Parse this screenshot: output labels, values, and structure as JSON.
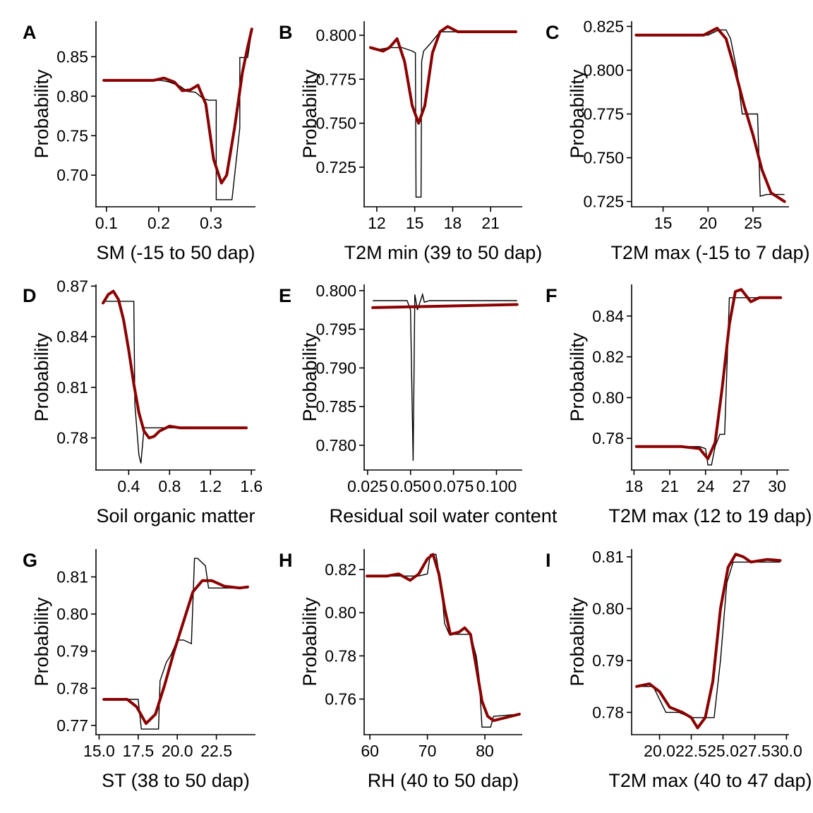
{
  "chart_data": [
    {
      "type": "line",
      "panel": "A",
      "xlabel": "SM  (-15 to 50 dap)",
      "ylabel": "Probability",
      "xlim": [
        0.08,
        0.385
      ],
      "ylim": [
        0.66,
        0.895
      ],
      "xticks": [
        0.1,
        0.2,
        0.3
      ],
      "xtick_labels": [
        "0.1",
        "0.2",
        "0.3"
      ],
      "yticks": [
        0.7,
        0.75,
        0.8,
        0.85
      ],
      "ytick_labels": [
        "0.70",
        "0.75",
        "0.80",
        "0.85"
      ],
      "series": [
        {
          "role": "partial_dependence",
          "color": "#000000",
          "x": [
            0.095,
            0.205,
            0.22,
            0.24,
            0.255,
            0.27,
            0.285,
            0.295,
            0.31,
            0.31,
            0.325,
            0.34,
            0.355,
            0.355,
            0.37,
            0.378
          ],
          "y": [
            0.82,
            0.82,
            0.818,
            0.813,
            0.806,
            0.805,
            0.797,
            0.795,
            0.795,
            0.669,
            0.669,
            0.669,
            0.76,
            0.849,
            0.849,
            0.883
          ]
        },
        {
          "role": "smoothed",
          "color": "#8b0000",
          "x": [
            0.095,
            0.15,
            0.19,
            0.21,
            0.23,
            0.245,
            0.26,
            0.275,
            0.29,
            0.305,
            0.32,
            0.33,
            0.345,
            0.36,
            0.37,
            0.378
          ],
          "y": [
            0.82,
            0.82,
            0.82,
            0.823,
            0.818,
            0.807,
            0.808,
            0.814,
            0.79,
            0.72,
            0.69,
            0.7,
            0.76,
            0.83,
            0.862,
            0.885
          ]
        }
      ]
    },
    {
      "type": "line",
      "panel": "B",
      "xlabel": "T2M min  (39 to 50 dap)",
      "ylabel": "Probability",
      "xlim": [
        11.0,
        23.5
      ],
      "ylim": [
        0.7025,
        0.808
      ],
      "xticks": [
        12,
        15,
        18,
        21
      ],
      "xtick_labels": [
        "12",
        "15",
        "18",
        "21"
      ],
      "yticks": [
        0.725,
        0.75,
        0.775,
        0.8
      ],
      "ytick_labels": [
        "0.725",
        "0.750",
        "0.775",
        "0.800"
      ],
      "series": [
        {
          "role": "partial_dependence",
          "color": "#000000",
          "x": [
            11.5,
            12.2,
            13.0,
            14.0,
            14.8,
            15.05,
            15.1,
            15.5,
            15.55,
            15.7,
            16.2,
            17.0,
            18.0,
            23.0
          ],
          "y": [
            0.793,
            0.792,
            0.793,
            0.793,
            0.791,
            0.79,
            0.708,
            0.708,
            0.785,
            0.791,
            0.795,
            0.802,
            0.802,
            0.802
          ]
        },
        {
          "role": "smoothed",
          "color": "#8b0000",
          "x": [
            11.5,
            12.5,
            13.0,
            13.6,
            14.2,
            14.8,
            15.3,
            15.8,
            16.4,
            17.0,
            17.6,
            18.4,
            19.5,
            23.0
          ],
          "y": [
            0.793,
            0.791,
            0.793,
            0.798,
            0.785,
            0.76,
            0.75,
            0.76,
            0.79,
            0.802,
            0.805,
            0.802,
            0.802,
            0.802
          ]
        }
      ]
    },
    {
      "type": "line",
      "panel": "C",
      "xlabel": "T2M max  (-15 to 7 dap)",
      "ylabel": "Probability",
      "xlim": [
        11.5,
        29.0
      ],
      "ylim": [
        0.722,
        0.828
      ],
      "xticks": [
        15,
        20,
        25
      ],
      "xtick_labels": [
        "15",
        "20",
        "25"
      ],
      "yticks": [
        0.725,
        0.75,
        0.775,
        0.8,
        0.825
      ],
      "ytick_labels": [
        "0.725",
        "0.750",
        "0.775",
        "0.800",
        "0.825"
      ],
      "series": [
        {
          "role": "partial_dependence",
          "color": "#000000",
          "x": [
            12.0,
            20.0,
            21.2,
            22.0,
            22.5,
            23.2,
            23.8,
            24.2,
            25.5,
            25.8,
            26.5,
            28.5
          ],
          "y": [
            0.82,
            0.82,
            0.823,
            0.823,
            0.818,
            0.8,
            0.775,
            0.775,
            0.775,
            0.728,
            0.729,
            0.729
          ]
        },
        {
          "role": "smoothed",
          "color": "#8b0000",
          "x": [
            12.0,
            18.0,
            19.5,
            21.0,
            22.0,
            23.0,
            24.0,
            25.0,
            26.0,
            27.0,
            28.5
          ],
          "y": [
            0.82,
            0.82,
            0.82,
            0.824,
            0.818,
            0.8,
            0.78,
            0.763,
            0.743,
            0.73,
            0.725
          ]
        }
      ]
    },
    {
      "type": "line",
      "panel": "D",
      "xlabel": "Soil organic matter",
      "ylabel": "Probability",
      "xlim": [
        0.08,
        1.64
      ],
      "ylim": [
        0.761,
        0.871
      ],
      "xticks": [
        0.4,
        0.8,
        1.2,
        1.6
      ],
      "xtick_labels": [
        "0.4",
        "0.8",
        "1.2",
        "1.6"
      ],
      "yticks": [
        0.78,
        0.81,
        0.84,
        0.87
      ],
      "ytick_labels": [
        "0.78",
        "0.81",
        "0.84",
        "0.87"
      ],
      "series": [
        {
          "role": "partial_dependence",
          "color": "#000000",
          "x": [
            0.15,
            0.45,
            0.46,
            0.5,
            0.52,
            0.55,
            0.57,
            1.55
          ],
          "y": [
            0.861,
            0.861,
            0.8,
            0.77,
            0.765,
            0.786,
            0.786,
            0.786
          ]
        },
        {
          "role": "smoothed",
          "color": "#8b0000",
          "x": [
            0.15,
            0.2,
            0.25,
            0.3,
            0.35,
            0.4,
            0.45,
            0.5,
            0.55,
            0.6,
            0.65,
            0.7,
            0.8,
            0.9,
            1.0,
            1.55
          ],
          "y": [
            0.86,
            0.865,
            0.867,
            0.862,
            0.85,
            0.832,
            0.812,
            0.795,
            0.784,
            0.78,
            0.781,
            0.784,
            0.787,
            0.786,
            0.786,
            0.786
          ]
        }
      ]
    },
    {
      "type": "line",
      "panel": "E",
      "xlabel": "Residual soil water content",
      "ylabel": "Probability",
      "xlim": [
        0.023,
        0.115
      ],
      "ylim": [
        0.7768,
        0.8008
      ],
      "xticks": [
        0.025,
        0.05,
        0.075,
        0.1
      ],
      "xtick_labels": [
        "0.025",
        "0.050",
        "0.075",
        "0.100"
      ],
      "yticks": [
        0.78,
        0.785,
        0.79,
        0.795,
        0.8
      ],
      "ytick_labels": [
        "0.780",
        "0.785",
        "0.790",
        "0.795",
        "0.800"
      ],
      "series": [
        {
          "role": "partial_dependence",
          "color": "#000000",
          "x": [
            0.028,
            0.048,
            0.05,
            0.0515,
            0.0525,
            0.054,
            0.0555,
            0.057,
            0.058,
            0.061,
            0.112
          ],
          "y": [
            0.7987,
            0.7987,
            0.7975,
            0.778,
            0.7995,
            0.7975,
            0.7985,
            0.7995,
            0.7985,
            0.7987,
            0.7987
          ]
        },
        {
          "role": "smoothed",
          "color": "#8b0000",
          "x": [
            0.028,
            0.112
          ],
          "y": [
            0.7978,
            0.7982
          ]
        }
      ]
    },
    {
      "type": "line",
      "panel": "F",
      "xlabel": "T2M max  (12 to 19 dap)",
      "ylabel": "Probability",
      "xlim": [
        17.8,
        31.0
      ],
      "ylim": [
        0.7645,
        0.8555
      ],
      "xticks": [
        18,
        21,
        24,
        27,
        30
      ],
      "xtick_labels": [
        "18",
        "21",
        "24",
        "27",
        "30"
      ],
      "yticks": [
        0.78,
        0.8,
        0.82,
        0.84
      ],
      "ytick_labels": [
        "0.78",
        "0.80",
        "0.82",
        "0.84"
      ],
      "series": [
        {
          "role": "partial_dependence",
          "color": "#000000",
          "x": [
            18.2,
            23.5,
            24.0,
            24.2,
            24.5,
            24.8,
            25.2,
            25.6,
            26.0,
            26.2,
            30.3
          ],
          "y": [
            0.776,
            0.776,
            0.775,
            0.767,
            0.767,
            0.776,
            0.782,
            0.782,
            0.849,
            0.849,
            0.849
          ]
        },
        {
          "role": "smoothed",
          "color": "#8b0000",
          "x": [
            18.2,
            22.0,
            23.5,
            24.2,
            24.8,
            25.4,
            26.0,
            26.5,
            27.0,
            27.8,
            28.5,
            29.5,
            30.3
          ],
          "y": [
            0.776,
            0.776,
            0.775,
            0.77,
            0.778,
            0.805,
            0.836,
            0.852,
            0.853,
            0.847,
            0.849,
            0.849,
            0.849
          ]
        }
      ]
    },
    {
      "type": "line",
      "panel": "G",
      "xlabel": "ST  (38 to 50 dap)",
      "ylabel": "Probability",
      "xlim": [
        14.8,
        25.0
      ],
      "ylim": [
        0.7675,
        0.8175
      ],
      "xticks": [
        15.0,
        17.5,
        20.0,
        22.5
      ],
      "xtick_labels": [
        "15.0",
        "17.5",
        "20.0",
        "22.5"
      ],
      "yticks": [
        0.77,
        0.78,
        0.79,
        0.8,
        0.81
      ],
      "ytick_labels": [
        "0.77",
        "0.78",
        "0.79",
        "0.80",
        "0.81"
      ],
      "series": [
        {
          "role": "partial_dependence",
          "color": "#000000",
          "x": [
            15.3,
            17.0,
            17.5,
            17.7,
            18.8,
            18.9,
            19.3,
            19.6,
            20.0,
            20.4,
            20.9,
            21.1,
            21.2,
            21.3,
            21.8,
            22.0,
            22.3,
            24.5
          ],
          "y": [
            0.777,
            0.777,
            0.777,
            0.769,
            0.769,
            0.782,
            0.787,
            0.789,
            0.793,
            0.793,
            0.792,
            0.815,
            0.815,
            0.815,
            0.813,
            0.807,
            0.807,
            0.807
          ]
        },
        {
          "role": "smoothed",
          "color": "#8b0000",
          "x": [
            15.3,
            16.8,
            17.4,
            18.0,
            18.6,
            19.2,
            19.8,
            20.4,
            21.0,
            21.6,
            22.2,
            23.0,
            24.0,
            24.5
          ],
          "y": [
            0.777,
            0.777,
            0.775,
            0.7705,
            0.773,
            0.781,
            0.79,
            0.798,
            0.806,
            0.809,
            0.809,
            0.8075,
            0.807,
            0.8073
          ]
        }
      ]
    },
    {
      "type": "line",
      "panel": "H",
      "xlabel": "RH  (40 to 50 dap)",
      "ylabel": "Probability",
      "xlim": [
        59.0,
        86.5
      ],
      "ylim": [
        0.7435,
        0.8295
      ],
      "xticks": [
        60,
        70,
        80
      ],
      "xtick_labels": [
        "60",
        "70",
        "80"
      ],
      "yticks": [
        0.76,
        0.78,
        0.8,
        0.82
      ],
      "ytick_labels": [
        "0.76",
        "0.78",
        "0.80",
        "0.82"
      ],
      "series": [
        {
          "role": "partial_dependence",
          "color": "#000000",
          "x": [
            59.5,
            68.5,
            70.0,
            70.5,
            71.5,
            72.5,
            73.0,
            73.8,
            76.0,
            77.5,
            78.5,
            79.0,
            79.5,
            81.0,
            81.5,
            86.0
          ],
          "y": [
            0.817,
            0.817,
            0.818,
            0.827,
            0.827,
            0.81,
            0.795,
            0.79,
            0.79,
            0.79,
            0.78,
            0.77,
            0.747,
            0.747,
            0.752,
            0.753
          ]
        },
        {
          "role": "smoothed",
          "color": "#8b0000",
          "x": [
            59.5,
            63.0,
            65.0,
            67.0,
            68.5,
            70.0,
            71.0,
            72.0,
            73.0,
            74.0,
            75.5,
            76.5,
            77.5,
            78.5,
            79.5,
            80.5,
            81.5,
            83.0,
            86.0
          ],
          "y": [
            0.817,
            0.817,
            0.818,
            0.815,
            0.818,
            0.825,
            0.827,
            0.818,
            0.802,
            0.79,
            0.791,
            0.793,
            0.79,
            0.775,
            0.759,
            0.752,
            0.75,
            0.751,
            0.753
          ]
        }
      ]
    },
    {
      "type": "line",
      "panel": "I",
      "xlabel": "T2M max  (40 to 47 dap)",
      "ylabel": "Probability",
      "xlim": [
        17.8,
        30.2
      ],
      "ylim": [
        0.7757,
        0.8115
      ],
      "xticks": [
        20.0,
        22.5,
        25.0,
        27.5,
        30.0
      ],
      "xtick_labels": [
        "20.0",
        "22.5",
        "25.0",
        "27.5",
        "30.0"
      ],
      "yticks": [
        0.78,
        0.79,
        0.8,
        0.81
      ],
      "ytick_labels": [
        "0.78",
        "0.79",
        "0.80",
        "0.81"
      ],
      "series": [
        {
          "role": "partial_dependence",
          "color": "#000000",
          "x": [
            18.2,
            19.5,
            20.5,
            21.5,
            22.5,
            23.5,
            24.0,
            24.3,
            24.8,
            25.3,
            25.8,
            26.5,
            29.5
          ],
          "y": [
            0.785,
            0.785,
            0.78,
            0.78,
            0.779,
            0.779,
            0.779,
            0.779,
            0.79,
            0.805,
            0.809,
            0.809,
            0.809
          ]
        },
        {
          "role": "smoothed",
          "color": "#8b0000",
          "x": [
            18.2,
            19.2,
            20.0,
            20.8,
            21.8,
            22.5,
            23.0,
            23.6,
            24.2,
            24.8,
            25.4,
            26.0,
            26.6,
            27.2,
            28.5,
            29.5
          ],
          "y": [
            0.785,
            0.7855,
            0.784,
            0.781,
            0.78,
            0.779,
            0.777,
            0.779,
            0.786,
            0.8,
            0.808,
            0.8105,
            0.81,
            0.809,
            0.8095,
            0.8093
          ]
        }
      ]
    }
  ]
}
